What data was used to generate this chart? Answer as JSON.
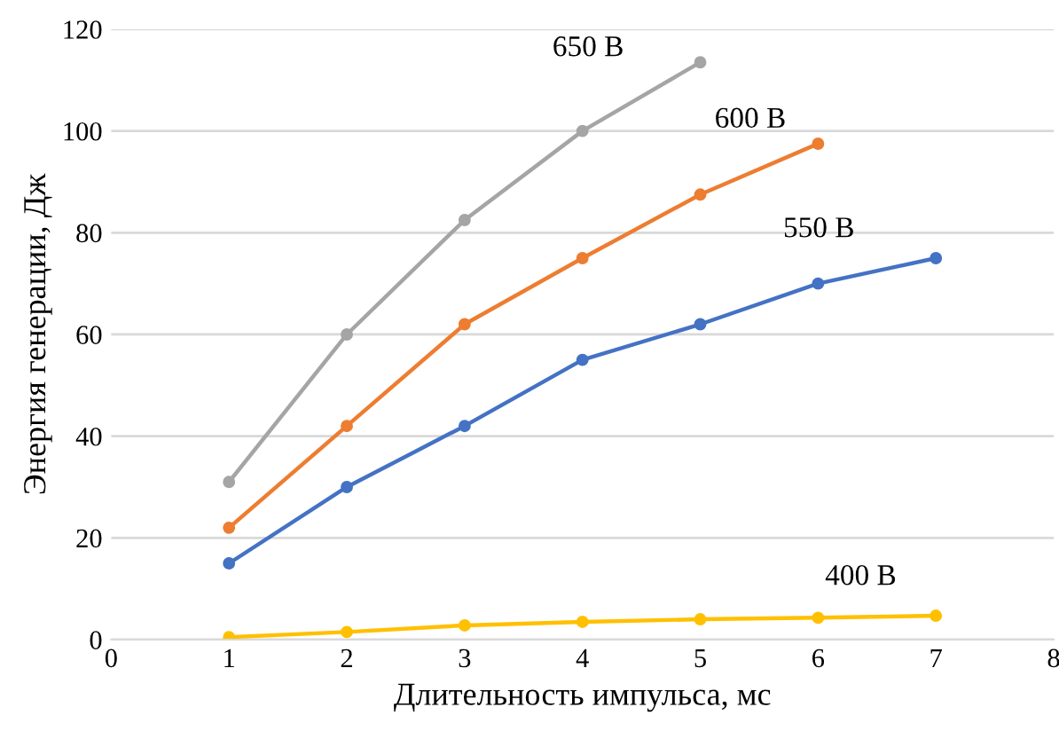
{
  "chart_data": {
    "type": "line",
    "xlabel": "Длительность импульса, мс",
    "ylabel": "Энергия генерации, Дж",
    "xlim": [
      0,
      8
    ],
    "xticks": [
      0,
      1,
      2,
      3,
      4,
      5,
      6,
      7,
      8
    ],
    "ylim": [
      0,
      120
    ],
    "yticks": [
      0,
      20,
      40,
      60,
      80,
      100,
      120
    ],
    "grid": "y",
    "marker": "circle",
    "line_style": "solid",
    "legend": false,
    "series": [
      {
        "name": "650 В",
        "color": "#a5a5a5",
        "x": [
          1,
          2,
          3,
          4,
          5
        ],
        "values": [
          31,
          60,
          82.5,
          100,
          113.5
        ]
      },
      {
        "name": "600 В",
        "color": "#ed7d31",
        "x": [
          1,
          2,
          3,
          4,
          5,
          6
        ],
        "values": [
          22,
          42,
          62,
          75,
          87.5,
          97.5
        ]
      },
      {
        "name": "550 В",
        "color": "#4472c4",
        "x": [
          1,
          2,
          3,
          4,
          5,
          6,
          7
        ],
        "values": [
          15,
          30,
          42,
          55,
          62,
          70,
          75
        ]
      },
      {
        "name": "400 В",
        "color": "#ffc000",
        "x": [
          1,
          2,
          3,
          4,
          5,
          6,
          7
        ],
        "values": [
          0.5,
          1.5,
          2.8,
          3.5,
          4,
          4.3,
          4.7
        ]
      }
    ]
  }
}
